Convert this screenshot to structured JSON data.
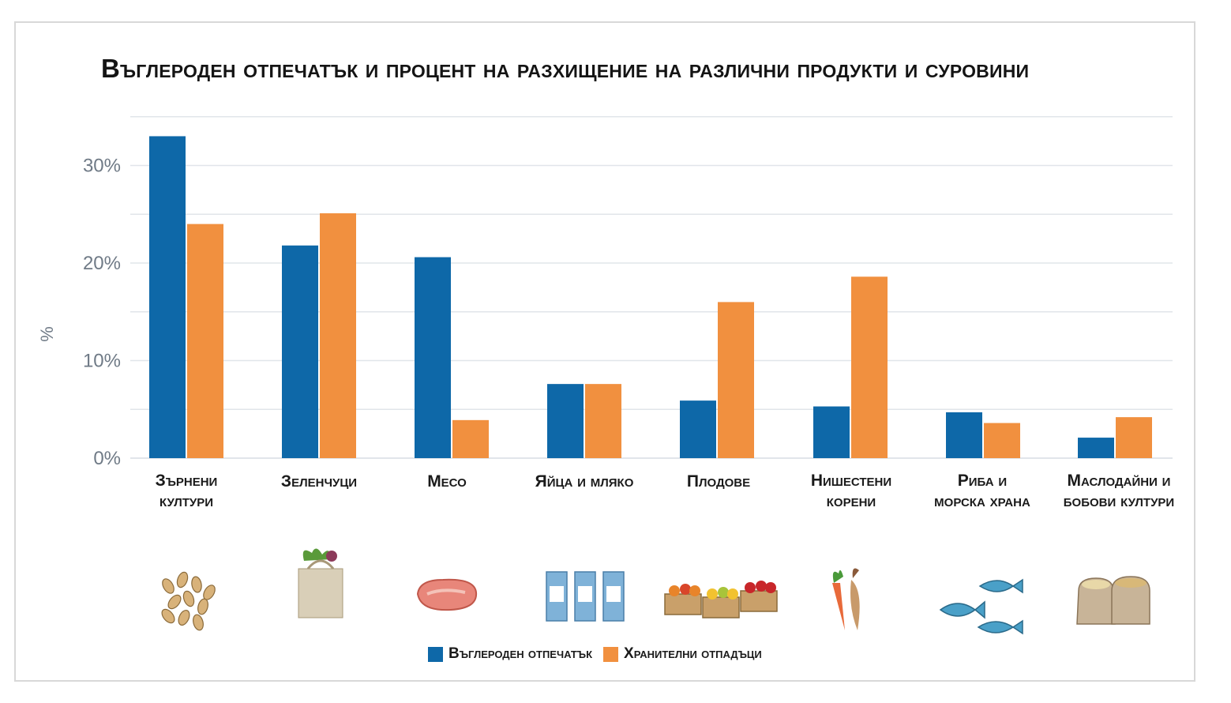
{
  "colors": {
    "carbon": "#0e68a8",
    "waste": "#f1903f",
    "grid": "#e1e5ea",
    "axis_text": "#6f7a86"
  },
  "chart_data": {
    "type": "bar",
    "title": "Въглероден отпечатък и процент на разхищение на различни продукти и суровини",
    "ylabel": "%",
    "yticks": [
      "30%",
      "20%",
      "10%",
      "0%"
    ],
    "ylim": [
      0,
      35
    ],
    "grid": true,
    "legend_position": "bottom",
    "categories": [
      [
        "Зърнени",
        "култури"
      ],
      [
        "Зеленчуци"
      ],
      [
        "Месо"
      ],
      [
        "Яйца и мляко"
      ],
      [
        "Плодове"
      ],
      [
        "Нишестени",
        "корени"
      ],
      [
        "Риба и",
        "морска храна"
      ],
      [
        "Маслодайни и",
        "бобови култури"
      ]
    ],
    "series": [
      {
        "name": "Въглероден отпечатък",
        "values": [
          33,
          21.8,
          20.6,
          7.6,
          5.9,
          5.3,
          4.7,
          2.1
        ]
      },
      {
        "name": "Хранителни отпадъци",
        "values": [
          24,
          25.1,
          3.9,
          7.6,
          16,
          18.6,
          3.6,
          4.2
        ]
      }
    ]
  },
  "icons": [
    "grain-icon",
    "vegetable-bag-icon",
    "meat-icon",
    "milk-cartons-icon",
    "fruit-crates-icon",
    "carrot-root-icon",
    "fish-icon",
    "sacks-icon"
  ]
}
